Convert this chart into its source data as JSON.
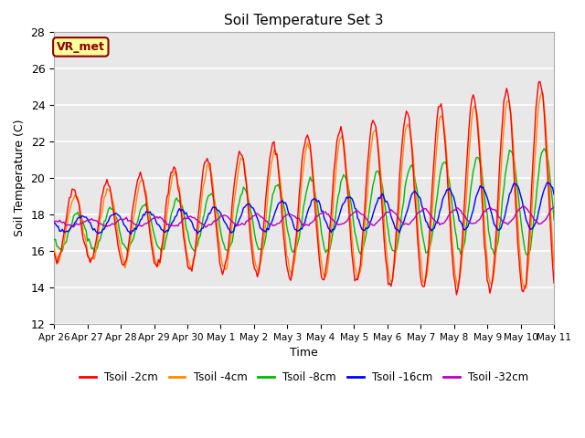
{
  "title": "Soil Temperature Set 3",
  "xlabel": "Time",
  "ylabel": "Soil Temperature (C)",
  "ylim": [
    12,
    28
  ],
  "background_color": "#ffffff",
  "plot_bg_color": "#e8e8e8",
  "annotation_text": "VR_met",
  "annotation_color": "#8b0000",
  "annotation_bg": "#ffff99",
  "legend_labels": [
    "Tsoil -2cm",
    "Tsoil -4cm",
    "Tsoil -8cm",
    "Tsoil -16cm",
    "Tsoil -32cm"
  ],
  "line_colors": [
    "#ff0000",
    "#ff8800",
    "#00bb00",
    "#0000ff",
    "#bb00bb"
  ],
  "xtick_labels": [
    "Apr 26",
    "Apr 27",
    "Apr 28",
    "Apr 29",
    "Apr 30",
    "May 1",
    "May 2",
    "May 3",
    "May 4",
    "May 5",
    "May 6",
    "May 7",
    "May 8",
    "May 9",
    "May 10",
    "May 11"
  ],
  "xtick_positions": [
    0,
    1,
    2,
    3,
    4,
    5,
    6,
    7,
    8,
    9,
    10,
    11,
    12,
    13,
    14,
    15
  ],
  "ytick_positions": [
    12,
    14,
    16,
    18,
    20,
    22,
    24,
    26,
    28
  ]
}
